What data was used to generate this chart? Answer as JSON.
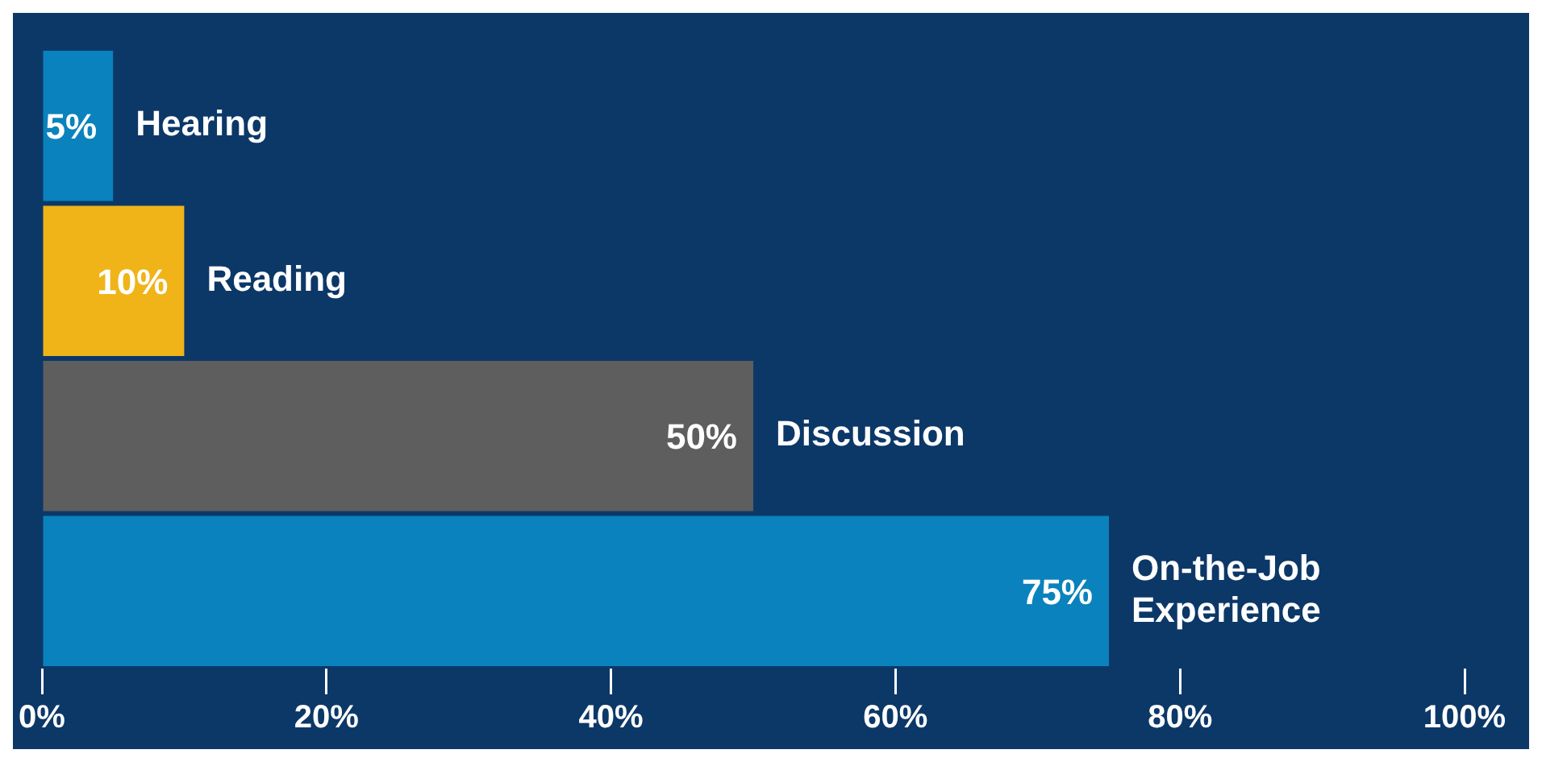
{
  "chart_data": {
    "type": "bar",
    "orientation": "horizontal",
    "categories": [
      "Hearing",
      "Reading",
      "Discussion",
      "On-the-Job Experience"
    ],
    "values": [
      5,
      10,
      50,
      75
    ],
    "colors": [
      "#0a82bd",
      "#f0b419",
      "#5e5e5e",
      "#0a82bd"
    ],
    "value_labels": [
      "5%",
      "10%",
      "50%",
      "75%"
    ],
    "xlim": [
      0,
      100
    ],
    "xticks": [
      {
        "value": 0,
        "label": "0%"
      },
      {
        "value": 20,
        "label": "20%"
      },
      {
        "value": 40,
        "label": "40%"
      },
      {
        "value": 60,
        "label": "60%"
      },
      {
        "value": 80,
        "label": "80%"
      },
      {
        "value": 100,
        "label": "100%"
      }
    ],
    "tick_labels": "x",
    "grid": false,
    "legend": false
  }
}
